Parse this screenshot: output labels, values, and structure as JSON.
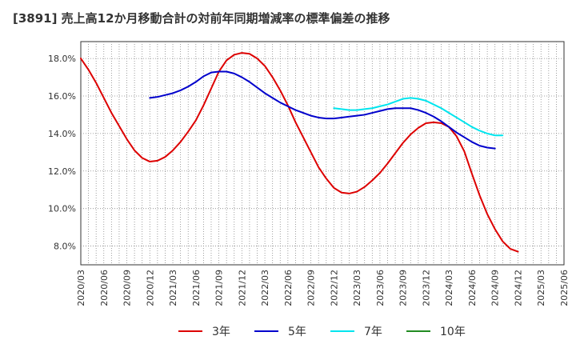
{
  "chart_data": {
    "type": "line",
    "title": "[3891]  売上高12か月移動合計の対前年同期増減率の標準偏差の推移",
    "xlabel": "",
    "ylabel": "",
    "x_ticks": [
      "2020/03",
      "2020/06",
      "2020/09",
      "2020/12",
      "2021/03",
      "2021/06",
      "2021/09",
      "2021/12",
      "2022/03",
      "2022/06",
      "2022/09",
      "2022/12",
      "2023/03",
      "2023/06",
      "2023/09",
      "2023/12",
      "2024/03",
      "2024/06",
      "2024/09",
      "2024/12",
      "2025/03",
      "2025/06"
    ],
    "y_ticks": [
      "8.0%",
      "10.0%",
      "12.0%",
      "14.0%",
      "16.0%",
      "18.0%"
    ],
    "ylim": [
      7.0,
      18.9
    ],
    "y_tick_values": [
      8,
      10,
      12,
      14,
      16,
      18
    ],
    "grid": true,
    "legend_position": "bottom",
    "series": [
      {
        "name": "3年",
        "color": "#dd0000",
        "points": [
          [
            "2020/03",
            18.0
          ],
          [
            "2020/04",
            17.4
          ],
          [
            "2020/05",
            16.7
          ],
          [
            "2020/06",
            15.9
          ],
          [
            "2020/07",
            15.1
          ],
          [
            "2020/08",
            14.4
          ],
          [
            "2020/09",
            13.7
          ],
          [
            "2020/10",
            13.1
          ],
          [
            "2020/11",
            12.7
          ],
          [
            "2020/12",
            12.5
          ],
          [
            "2021/01",
            12.55
          ],
          [
            "2021/02",
            12.75
          ],
          [
            "2021/03",
            13.1
          ],
          [
            "2021/04",
            13.55
          ],
          [
            "2021/05",
            14.1
          ],
          [
            "2021/06",
            14.7
          ],
          [
            "2021/07",
            15.5
          ],
          [
            "2021/08",
            16.4
          ],
          [
            "2021/09",
            17.3
          ],
          [
            "2021/10",
            17.9
          ],
          [
            "2021/11",
            18.2
          ],
          [
            "2021/12",
            18.3
          ],
          [
            "2022/01",
            18.25
          ],
          [
            "2022/02",
            18.0
          ],
          [
            "2022/03",
            17.6
          ],
          [
            "2022/04",
            17.0
          ],
          [
            "2022/05",
            16.3
          ],
          [
            "2022/06",
            15.5
          ],
          [
            "2022/07",
            14.6
          ],
          [
            "2022/08",
            13.8
          ],
          [
            "2022/09",
            13.0
          ],
          [
            "2022/10",
            12.2
          ],
          [
            "2022/11",
            11.6
          ],
          [
            "2022/12",
            11.1
          ],
          [
            "2023/01",
            10.85
          ],
          [
            "2023/02",
            10.8
          ],
          [
            "2023/03",
            10.9
          ],
          [
            "2023/04",
            11.15
          ],
          [
            "2023/05",
            11.5
          ],
          [
            "2023/06",
            11.9
          ],
          [
            "2023/07",
            12.4
          ],
          [
            "2023/08",
            12.95
          ],
          [
            "2023/09",
            13.5
          ],
          [
            "2023/10",
            13.95
          ],
          [
            "2023/11",
            14.3
          ],
          [
            "2023/12",
            14.55
          ],
          [
            "2024/01",
            14.6
          ],
          [
            "2024/02",
            14.55
          ],
          [
            "2024/03",
            14.35
          ],
          [
            "2024/04",
            13.85
          ],
          [
            "2024/05",
            13.05
          ],
          [
            "2024/06",
            11.85
          ],
          [
            "2024/07",
            10.7
          ],
          [
            "2024/08",
            9.7
          ],
          [
            "2024/09",
            8.9
          ],
          [
            "2024/10",
            8.25
          ],
          [
            "2024/11",
            7.85
          ],
          [
            "2024/12",
            7.7
          ]
        ]
      },
      {
        "name": "5年",
        "color": "#0000cc",
        "points": [
          [
            "2020/12",
            15.9
          ],
          [
            "2021/01",
            15.95
          ],
          [
            "2021/02",
            16.05
          ],
          [
            "2021/03",
            16.15
          ],
          [
            "2021/04",
            16.3
          ],
          [
            "2021/05",
            16.5
          ],
          [
            "2021/06",
            16.75
          ],
          [
            "2021/07",
            17.05
          ],
          [
            "2021/08",
            17.25
          ],
          [
            "2021/09",
            17.3
          ],
          [
            "2021/10",
            17.3
          ],
          [
            "2021/11",
            17.2
          ],
          [
            "2021/12",
            17.0
          ],
          [
            "2022/01",
            16.75
          ],
          [
            "2022/02",
            16.45
          ],
          [
            "2022/03",
            16.15
          ],
          [
            "2022/04",
            15.9
          ],
          [
            "2022/05",
            15.65
          ],
          [
            "2022/06",
            15.45
          ],
          [
            "2022/07",
            15.25
          ],
          [
            "2022/08",
            15.1
          ],
          [
            "2022/09",
            14.95
          ],
          [
            "2022/10",
            14.85
          ],
          [
            "2022/11",
            14.8
          ],
          [
            "2022/12",
            14.8
          ],
          [
            "2023/01",
            14.85
          ],
          [
            "2023/02",
            14.9
          ],
          [
            "2023/03",
            14.95
          ],
          [
            "2023/04",
            15.0
          ],
          [
            "2023/05",
            15.1
          ],
          [
            "2023/06",
            15.2
          ],
          [
            "2023/07",
            15.3
          ],
          [
            "2023/08",
            15.35
          ],
          [
            "2023/09",
            15.35
          ],
          [
            "2023/10",
            15.35
          ],
          [
            "2023/11",
            15.25
          ],
          [
            "2023/12",
            15.1
          ],
          [
            "2024/01",
            14.9
          ],
          [
            "2024/02",
            14.65
          ],
          [
            "2024/03",
            14.35
          ],
          [
            "2024/04",
            14.05
          ],
          [
            "2024/05",
            13.8
          ],
          [
            "2024/06",
            13.55
          ],
          [
            "2024/07",
            13.35
          ],
          [
            "2024/08",
            13.25
          ],
          [
            "2024/09",
            13.2
          ]
        ]
      },
      {
        "name": "7年",
        "color": "#00e5ee",
        "points": [
          [
            "2022/12",
            15.35
          ],
          [
            "2023/01",
            15.3
          ],
          [
            "2023/02",
            15.25
          ],
          [
            "2023/03",
            15.25
          ],
          [
            "2023/04",
            15.3
          ],
          [
            "2023/05",
            15.35
          ],
          [
            "2023/06",
            15.45
          ],
          [
            "2023/07",
            15.55
          ],
          [
            "2023/08",
            15.7
          ],
          [
            "2023/09",
            15.85
          ],
          [
            "2023/10",
            15.9
          ],
          [
            "2023/11",
            15.85
          ],
          [
            "2023/12",
            15.75
          ],
          [
            "2024/01",
            15.55
          ],
          [
            "2024/02",
            15.35
          ],
          [
            "2024/03",
            15.1
          ],
          [
            "2024/04",
            14.85
          ],
          [
            "2024/05",
            14.6
          ],
          [
            "2024/06",
            14.35
          ],
          [
            "2024/07",
            14.15
          ],
          [
            "2024/08",
            14.0
          ],
          [
            "2024/09",
            13.9
          ],
          [
            "2024/10",
            13.9
          ]
        ]
      },
      {
        "name": "10年",
        "color": "#228b22",
        "points": []
      }
    ]
  }
}
